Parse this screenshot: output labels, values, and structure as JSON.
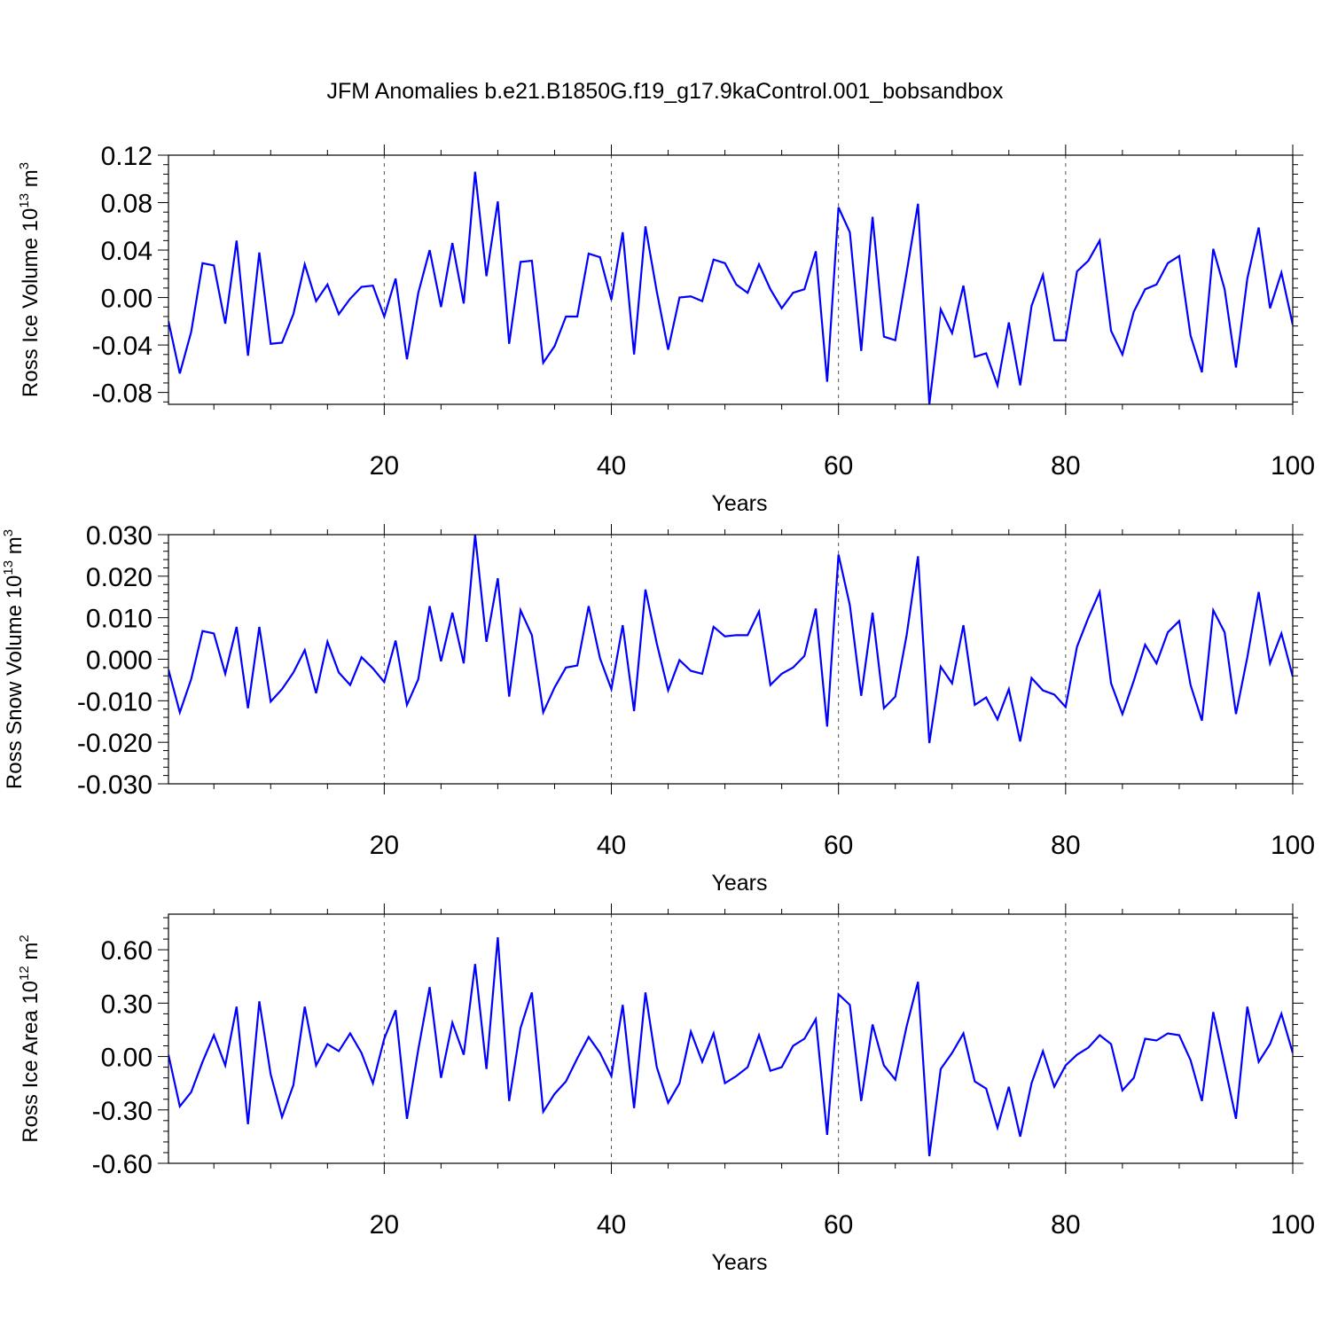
{
  "figure": {
    "title": "JFM Anomalies b.e21.B1850G.f19_g17.9kaControl.001_bobsandbox",
    "line_color": "#0000ff"
  },
  "chart_data": [
    {
      "type": "line",
      "ylabel": "Ross Ice Volume 10",
      "ylabel_exp": "13",
      "ylabel_unit": " m",
      "ylabel_unit_exp": "3",
      "xlabel": "Years",
      "xlim": [
        1,
        100
      ],
      "ylim": [
        -0.09,
        0.12
      ],
      "x_ticks": [
        20,
        40,
        60,
        80,
        100
      ],
      "x_tick_labels": [
        "20",
        "40",
        "60",
        "80",
        "100"
      ],
      "y_ticks": [
        -0.08,
        -0.04,
        0.0,
        0.04,
        0.08,
        0.12
      ],
      "y_tick_labels": [
        "-0.08",
        "-0.04",
        "0.00",
        "0.04",
        "0.08",
        "0.12"
      ],
      "grid": "vertical dashed at x ticks",
      "series": [
        {
          "values": [
            -0.02,
            -0.064,
            -0.029,
            0.029,
            0.027,
            -0.022,
            0.048,
            -0.049,
            0.038,
            -0.039,
            -0.038,
            -0.014,
            0.028,
            -0.003,
            0.011,
            -0.014,
            -0.001,
            0.009,
            0.01,
            -0.016,
            0.016,
            -0.052,
            0.004,
            0.04,
            -0.008,
            0.046,
            -0.005,
            0.106,
            0.018,
            0.081,
            -0.039,
            0.03,
            0.031,
            -0.055,
            -0.041,
            -0.016,
            -0.016,
            0.037,
            0.034,
            -0.002,
            0.055,
            -0.048,
            0.06,
            0.005,
            -0.044,
            0.0,
            0.001,
            -0.003,
            0.032,
            0.029,
            0.011,
            0.004,
            0.028,
            0.007,
            -0.009,
            0.004,
            0.007,
            0.039,
            -0.071,
            0.076,
            0.055,
            -0.045,
            0.068,
            -0.033,
            -0.036,
            0.021,
            0.079,
            -0.09,
            -0.01,
            -0.03,
            0.01,
            -0.05,
            -0.047,
            -0.074,
            -0.021,
            -0.074,
            -0.007,
            0.019,
            -0.036,
            -0.036,
            0.022,
            0.031,
            0.048,
            -0.028,
            -0.048,
            -0.012,
            0.007,
            0.011,
            0.029,
            0.035,
            -0.032,
            -0.063,
            0.041,
            0.007,
            -0.059,
            0.016,
            0.059,
            -0.009,
            0.021,
            -0.023
          ]
        }
      ]
    },
    {
      "type": "line",
      "ylabel": "Ross Snow Volume 10",
      "ylabel_exp": "13",
      "ylabel_unit": " m",
      "ylabel_unit_exp": "3",
      "xlabel": "Years",
      "xlim": [
        1,
        100
      ],
      "ylim": [
        -0.03,
        0.03
      ],
      "x_ticks": [
        20,
        40,
        60,
        80,
        100
      ],
      "x_tick_labels": [
        "20",
        "40",
        "60",
        "80",
        "100"
      ],
      "y_ticks": [
        -0.03,
        -0.02,
        -0.01,
        0.0,
        0.01,
        0.02,
        0.03
      ],
      "y_tick_labels": [
        "-0.030",
        "-0.020",
        "-0.010",
        "0.000",
        "0.010",
        "0.020",
        "0.030"
      ],
      "grid": "vertical dashed at x ticks",
      "series": [
        {
          "values": [
            -0.0025,
            -0.0128,
            -0.0048,
            0.0068,
            0.0062,
            -0.0035,
            0.0078,
            -0.0118,
            0.0078,
            -0.0102,
            -0.0072,
            -0.0032,
            0.0022,
            -0.0082,
            0.0042,
            -0.0032,
            -0.0062,
            0.0005,
            -0.0022,
            -0.0055,
            0.0045,
            -0.011,
            -0.0048,
            0.0128,
            -0.0005,
            0.0112,
            -0.001,
            0.03,
            0.0042,
            0.0195,
            -0.009,
            0.0118,
            0.0058,
            -0.0128,
            -0.0068,
            -0.002,
            -0.0015,
            0.0128,
            0.0002,
            -0.0072,
            0.0082,
            -0.0125,
            0.0168,
            0.0038,
            -0.0075,
            -0.0002,
            -0.0028,
            -0.0035,
            0.0078,
            0.0055,
            0.0058,
            0.0058,
            0.0115,
            -0.0062,
            -0.0035,
            -0.002,
            0.0008,
            0.0122,
            -0.0162,
            0.0252,
            0.013,
            -0.0088,
            0.0112,
            -0.0118,
            -0.009,
            0.0058,
            0.0248,
            -0.0202,
            -0.0018,
            -0.0058,
            0.0082,
            -0.011,
            -0.0092,
            -0.0145,
            -0.0072,
            -0.0198,
            -0.0045,
            -0.0075,
            -0.0085,
            -0.0115,
            0.003,
            0.01,
            0.0162,
            -0.0058,
            -0.0132,
            -0.0052,
            0.0035,
            -0.001,
            0.0065,
            0.0092,
            -0.0062,
            -0.0148,
            0.0118,
            0.0065,
            -0.0132,
            0.0005,
            0.0162,
            -0.001,
            0.0062,
            -0.0042
          ]
        }
      ]
    },
    {
      "type": "line",
      "ylabel": "Ross Ice Area 10",
      "ylabel_exp": "12",
      "ylabel_unit": " m",
      "ylabel_unit_exp": "2",
      "xlabel": "Years",
      "xlim": [
        1,
        100
      ],
      "ylim": [
        -0.6,
        0.8
      ],
      "x_ticks": [
        20,
        40,
        60,
        80,
        100
      ],
      "x_tick_labels": [
        "20",
        "40",
        "60",
        "80",
        "100"
      ],
      "y_ticks": [
        -0.6,
        -0.3,
        0.0,
        0.3,
        0.6
      ],
      "y_tick_labels": [
        "-0.60",
        "-0.30",
        "0.00",
        "0.30",
        "0.60"
      ],
      "grid": "vertical dashed at x ticks",
      "series": [
        {
          "values": [
            0.01,
            -0.28,
            -0.2,
            -0.03,
            0.12,
            -0.05,
            0.28,
            -0.38,
            0.31,
            -0.1,
            -0.34,
            -0.16,
            0.28,
            -0.05,
            0.07,
            0.03,
            0.13,
            0.02,
            -0.15,
            0.1,
            0.26,
            -0.35,
            0.04,
            0.39,
            -0.12,
            0.19,
            0.01,
            0.52,
            -0.07,
            0.67,
            -0.25,
            0.16,
            0.36,
            -0.31,
            -0.21,
            -0.14,
            -0.01,
            0.11,
            0.02,
            -0.11,
            0.29,
            -0.29,
            0.36,
            -0.06,
            -0.26,
            -0.15,
            0.14,
            -0.03,
            0.13,
            -0.15,
            -0.11,
            -0.06,
            0.12,
            -0.08,
            -0.06,
            0.06,
            0.1,
            0.21,
            -0.44,
            0.35,
            0.29,
            -0.25,
            0.18,
            -0.05,
            -0.13,
            0.17,
            0.42,
            -0.56,
            -0.07,
            0.02,
            0.13,
            -0.14,
            -0.18,
            -0.4,
            -0.17,
            -0.45,
            -0.15,
            0.03,
            -0.17,
            -0.05,
            0.01,
            0.05,
            0.12,
            0.07,
            -0.19,
            -0.12,
            0.1,
            0.09,
            0.13,
            0.12,
            -0.02,
            -0.25,
            0.25,
            -0.05,
            -0.35,
            0.28,
            -0.03,
            0.07,
            0.24,
            0.02
          ]
        }
      ]
    }
  ]
}
